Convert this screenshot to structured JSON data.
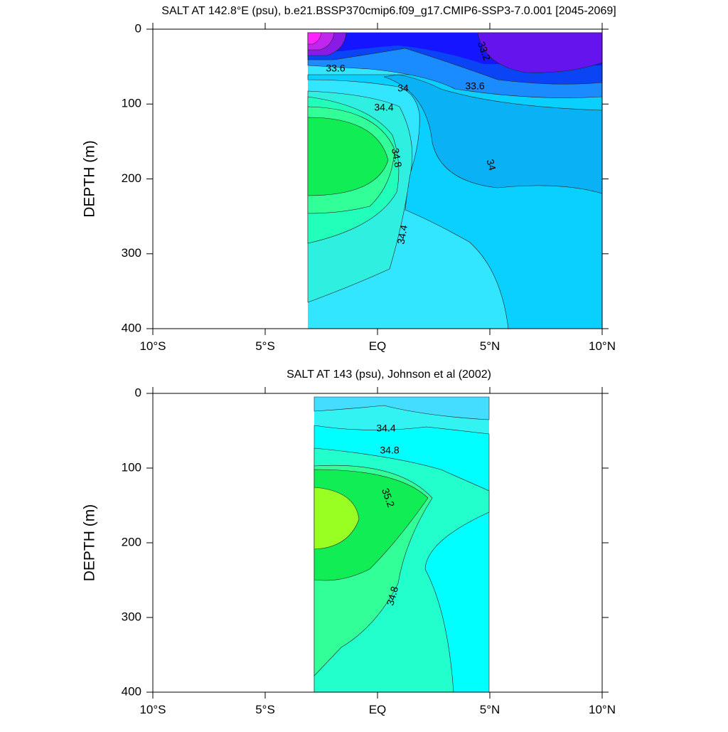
{
  "chart_data": [
    {
      "type": "contour",
      "title": "SALT AT 142.8°E (psu), b.e21.BSSP370cmip6.f09_g17.CMIP6-SSP3-7.0.001 [2045-2069]",
      "ylabel": "DEPTH (m)",
      "xlim": [
        -10,
        10
      ],
      "ylim": [
        0,
        400
      ],
      "y_inverted": true,
      "xticks": [
        {
          "value": -10,
          "label": "10°S"
        },
        {
          "value": -5,
          "label": "5°S"
        },
        {
          "value": 0,
          "label": "EQ"
        },
        {
          "value": 5,
          "label": "5°N"
        },
        {
          "value": 10,
          "label": "10°N"
        }
      ],
      "yticks": [
        0,
        100,
        200,
        300,
        400
      ],
      "contour_labels": [
        33.2,
        33.6,
        33.6,
        34,
        34.4,
        34.8,
        34,
        34.4
      ]
    },
    {
      "type": "contour",
      "title": "SALT AT 143 (psu), Johnson et al (2002)",
      "ylabel": "DEPTH (m)",
      "xlim": [
        -10,
        10
      ],
      "ylim": [
        0,
        400
      ],
      "y_inverted": true,
      "xticks": [
        {
          "value": -10,
          "label": "10°S"
        },
        {
          "value": -5,
          "label": "5°S"
        },
        {
          "value": 0,
          "label": "EQ"
        },
        {
          "value": 5,
          "label": "5°N"
        },
        {
          "value": 10,
          "label": "10°N"
        }
      ],
      "yticks": [
        0,
        100,
        200,
        300,
        400
      ],
      "contour_labels": [
        34.4,
        34.8,
        35.2,
        34.8
      ]
    }
  ]
}
